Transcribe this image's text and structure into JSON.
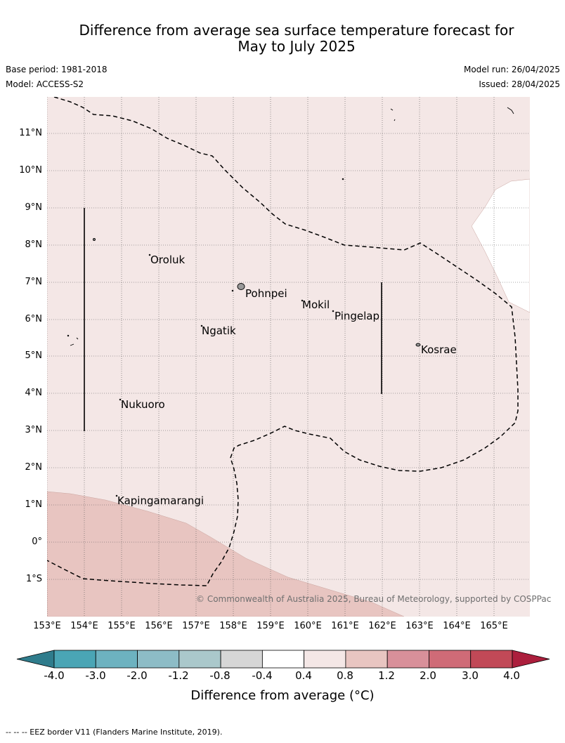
{
  "title_line1": "Difference from average sea surface temperature forecast for",
  "title_line2": "May to July 2025",
  "base_period": "Base period: 1981-2018",
  "model": "Model: ACCESS-S2",
  "model_run": "Model run: 26/04/2025",
  "issued": "Issued: 28/04/2025",
  "lat_labels": [
    "11°N",
    "10°N",
    "9°N",
    "8°N",
    "7°N",
    "6°N",
    "5°N",
    "4°N",
    "3°N",
    "2°N",
    "1°N",
    "0°",
    "1°S"
  ],
  "lon_labels": [
    "153°E",
    "154°E",
    "155°E",
    "156°E",
    "157°E",
    "158°E",
    "159°E",
    "160°E",
    "161°E",
    "162°E",
    "163°E",
    "164°E",
    "165°E"
  ],
  "places": {
    "oroluk": "Oroluk",
    "pohnpei": "Pohnpei",
    "mokil": "Mokil",
    "pingelap": "Pingelap",
    "ngatik": "Ngatik",
    "kosrae": "Kosrae",
    "nukuoro": "Nukuoro",
    "kapingamarangi": "Kapingamarangi"
  },
  "copyright": "© Commonwealth of Australia 2025, Bureau of Meteorology, supported by COSPPac",
  "colorbar": {
    "ticks": [
      "-4.0",
      "-3.0",
      "-2.0",
      "-1.2",
      "-0.8",
      "-0.4",
      "0.4",
      "0.8",
      "1.2",
      "2.0",
      "3.0",
      "4.0"
    ],
    "colors": [
      "#4aa5b5",
      "#6db2c0",
      "#8dbcc6",
      "#aac8cb",
      "#d6d6d6",
      "#ffffff",
      "#f4e7e6",
      "#e8c5c1",
      "#d8909a",
      "#cf6b77",
      "#c14957"
    ],
    "under_color": "#2f7c8c",
    "over_color": "#ac1f3d",
    "title": "Difference from average (°C)"
  },
  "map_colors": {
    "background": "#f4e7e6",
    "warm_area": "#e8c5c1",
    "no_anomaly": "#ffffff"
  },
  "footnote": "--  --  -- EEZ border V11 (Flanders Marine Institute, 2019)."
}
